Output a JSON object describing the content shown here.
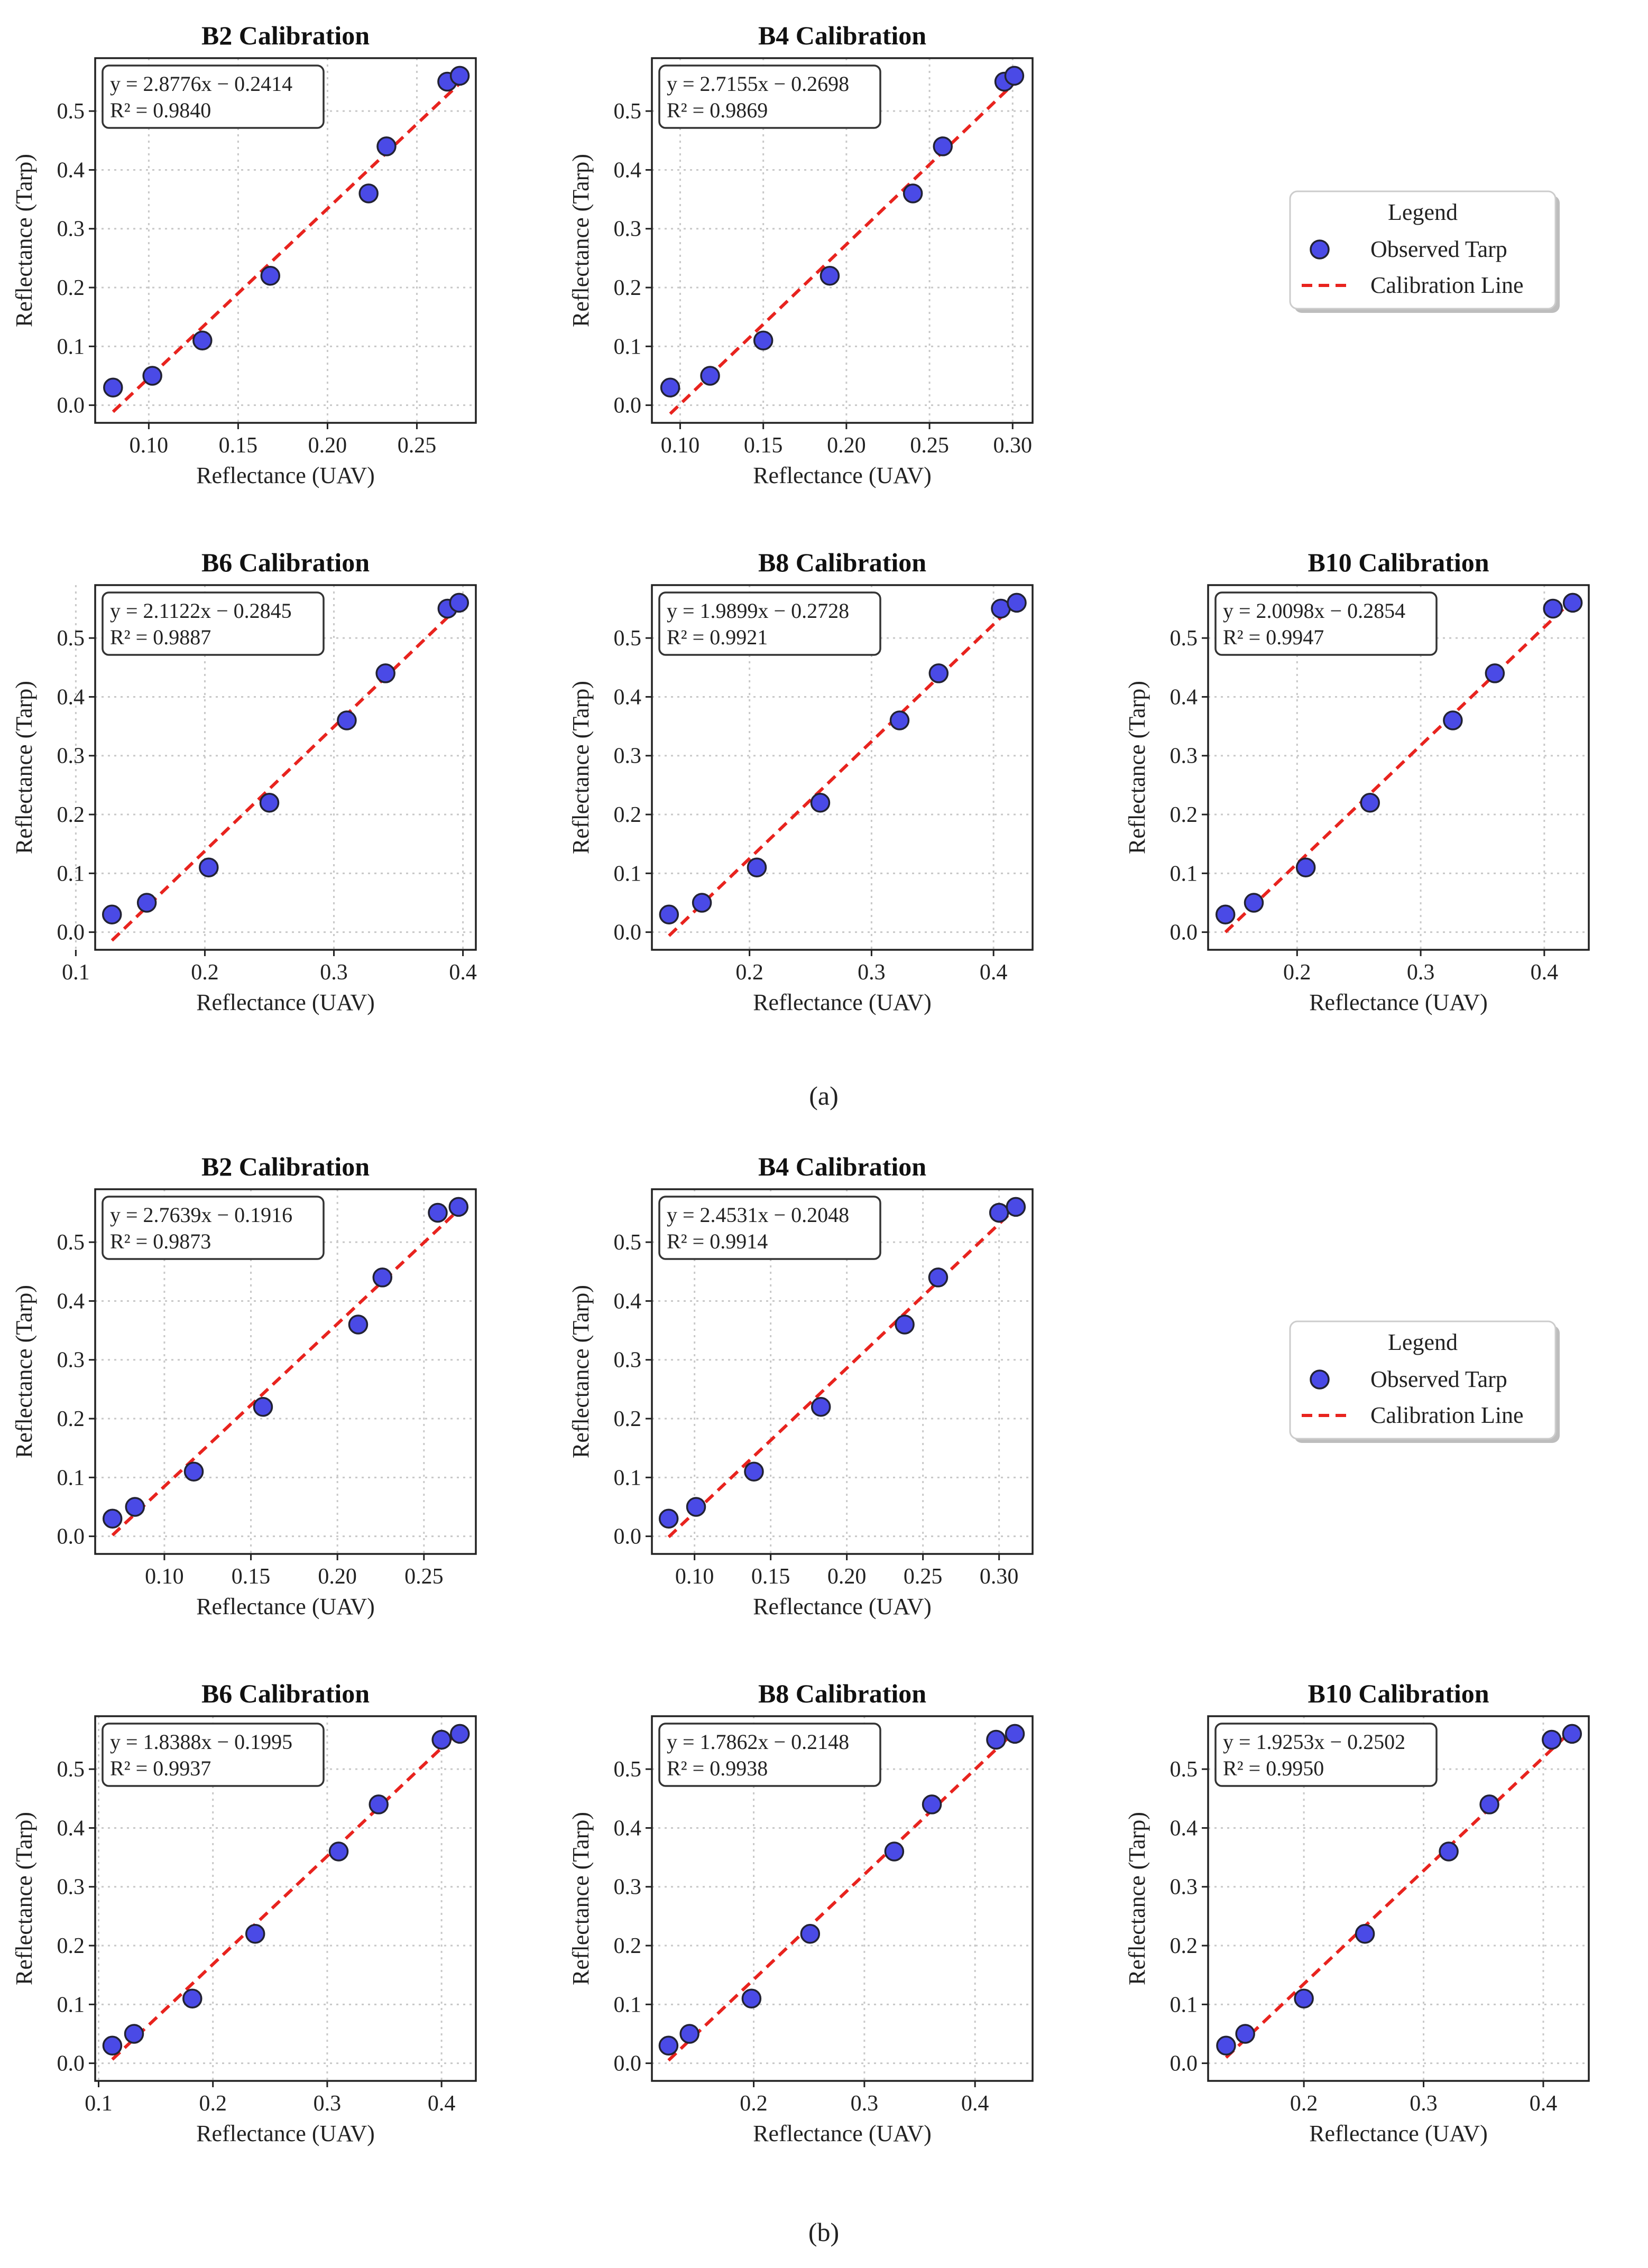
{
  "figure": {
    "marker_color": "#4a4ae6",
    "marker_edge": "#222233",
    "line_color": "#e8231e",
    "grid_color": "#c8c8c8",
    "legend_marker_icon": "filled-circle-icon",
    "legend_line_icon": "dashed-line-icon"
  },
  "panels": [
    {
      "label": "(a)"
    },
    {
      "label": "(b)"
    }
  ],
  "legends": [
    {
      "title": "Legend",
      "items": [
        "Observed Tarp",
        "Calibration Line"
      ]
    },
    {
      "title": "Legend",
      "items": [
        "Observed Tarp",
        "Calibration Line"
      ]
    }
  ],
  "chart_data": [
    {
      "type": "scatter",
      "panel": "(a)",
      "title": "B2 Calibration",
      "xlabel": "Reflectance (UAV)",
      "ylabel": "Reflectance (Tarp)",
      "xlim": [
        0.07,
        0.283
      ],
      "ylim": [
        -0.03,
        0.59
      ],
      "xticks": [
        0.1,
        0.15,
        0.2,
        0.25
      ],
      "xtick_labels": [
        "0.10",
        "0.15",
        "0.20",
        "0.25"
      ],
      "yticks": [
        0.0,
        0.1,
        0.2,
        0.3,
        0.4,
        0.5
      ],
      "ytick_labels": [
        "0.0",
        "0.1",
        "0.2",
        "0.3",
        "0.4",
        "0.5"
      ],
      "series": [
        {
          "name": "Observed Tarp",
          "x": [
            0.08,
            0.102,
            0.13,
            0.168,
            0.223,
            0.233,
            0.267,
            0.274
          ],
          "y": [
            0.03,
            0.05,
            0.11,
            0.22,
            0.36,
            0.44,
            0.55,
            0.56
          ]
        },
        {
          "name": "Calibration Line",
          "slope": 2.8776,
          "intercept": -0.2414,
          "x_range": [
            0.08,
            0.274
          ]
        }
      ],
      "annotation": [
        "y = 2.8776x − 0.2414",
        "R² = 0.9840"
      ]
    },
    {
      "type": "scatter",
      "panel": "(a)",
      "title": "B4 Calibration",
      "xlabel": "Reflectance (UAV)",
      "ylabel": "Reflectance (Tarp)",
      "xlim": [
        0.083,
        0.312
      ],
      "ylim": [
        -0.03,
        0.59
      ],
      "xticks": [
        0.1,
        0.15,
        0.2,
        0.25,
        0.3
      ],
      "xtick_labels": [
        "0.10",
        "0.15",
        "0.20",
        "0.25",
        "0.30"
      ],
      "yticks": [
        0.0,
        0.1,
        0.2,
        0.3,
        0.4,
        0.5
      ],
      "ytick_labels": [
        "0.0",
        "0.1",
        "0.2",
        "0.3",
        "0.4",
        "0.5"
      ],
      "series": [
        {
          "name": "Observed Tarp",
          "x": [
            0.094,
            0.118,
            0.15,
            0.19,
            0.24,
            0.258,
            0.295,
            0.301
          ],
          "y": [
            0.03,
            0.05,
            0.11,
            0.22,
            0.36,
            0.44,
            0.55,
            0.56
          ]
        },
        {
          "name": "Calibration Line",
          "slope": 2.7155,
          "intercept": -0.2698,
          "x_range": [
            0.094,
            0.301
          ]
        }
      ],
      "annotation": [
        "y = 2.7155x − 0.2698",
        "R² = 0.9869"
      ]
    },
    {
      "type": "scatter",
      "panel": "(a)",
      "title": "B6 Calibration",
      "xlabel": "Reflectance (UAV)",
      "ylabel": "Reflectance (Tarp)",
      "xlim": [
        0.115,
        0.41
      ],
      "ylim": [
        -0.03,
        0.59
      ],
      "xticks": [
        0.1,
        0.2,
        0.3,
        0.4
      ],
      "xtick_labels": [
        "0.1",
        "0.2",
        "0.3",
        "0.4"
      ],
      "yticks": [
        0.0,
        0.1,
        0.2,
        0.3,
        0.4,
        0.5
      ],
      "ytick_labels": [
        "0.0",
        "0.1",
        "0.2",
        "0.3",
        "0.4",
        "0.5"
      ],
      "series": [
        {
          "name": "Observed Tarp",
          "x": [
            0.128,
            0.155,
            0.203,
            0.25,
            0.31,
            0.34,
            0.388,
            0.397
          ],
          "y": [
            0.03,
            0.05,
            0.11,
            0.22,
            0.36,
            0.44,
            0.55,
            0.56
          ]
        },
        {
          "name": "Calibration Line",
          "slope": 2.1122,
          "intercept": -0.2845,
          "x_range": [
            0.128,
            0.397
          ]
        }
      ],
      "annotation": [
        "y = 2.1122x − 0.2845",
        "R² = 0.9887"
      ]
    },
    {
      "type": "scatter",
      "panel": "(a)",
      "title": "B8 Calibration",
      "xlabel": "Reflectance (UAV)",
      "ylabel": "Reflectance (Tarp)",
      "xlim": [
        0.12,
        0.432
      ],
      "ylim": [
        -0.03,
        0.59
      ],
      "xticks": [
        0.2,
        0.3,
        0.4
      ],
      "xtick_labels": [
        "0.2",
        "0.3",
        "0.4"
      ],
      "yticks": [
        0.0,
        0.1,
        0.2,
        0.3,
        0.4,
        0.5
      ],
      "ytick_labels": [
        "0.0",
        "0.1",
        "0.2",
        "0.3",
        "0.4",
        "0.5"
      ],
      "series": [
        {
          "name": "Observed Tarp",
          "x": [
            0.134,
            0.161,
            0.206,
            0.258,
            0.323,
            0.355,
            0.406,
            0.419
          ],
          "y": [
            0.03,
            0.05,
            0.11,
            0.22,
            0.36,
            0.44,
            0.55,
            0.56
          ]
        },
        {
          "name": "Calibration Line",
          "slope": 1.9899,
          "intercept": -0.2728,
          "x_range": [
            0.134,
            0.419
          ]
        }
      ],
      "annotation": [
        "y = 1.9899x − 0.2728",
        "R² = 0.9921"
      ]
    },
    {
      "type": "scatter",
      "panel": "(a)",
      "title": "B10 Calibration",
      "xlabel": "Reflectance (UAV)",
      "ylabel": "Reflectance (Tarp)",
      "xlim": [
        0.128,
        0.436
      ],
      "ylim": [
        -0.03,
        0.59
      ],
      "xticks": [
        0.2,
        0.3,
        0.4
      ],
      "xtick_labels": [
        "0.2",
        "0.3",
        "0.4"
      ],
      "yticks": [
        0.0,
        0.1,
        0.2,
        0.3,
        0.4,
        0.5
      ],
      "ytick_labels": [
        "0.0",
        "0.1",
        "0.2",
        "0.3",
        "0.4",
        "0.5"
      ],
      "series": [
        {
          "name": "Observed Tarp",
          "x": [
            0.142,
            0.165,
            0.207,
            0.259,
            0.326,
            0.36,
            0.407,
            0.423
          ],
          "y": [
            0.03,
            0.05,
            0.11,
            0.22,
            0.36,
            0.44,
            0.55,
            0.56
          ]
        },
        {
          "name": "Calibration Line",
          "slope": 2.0098,
          "intercept": -0.2854,
          "x_range": [
            0.142,
            0.423
          ]
        }
      ],
      "annotation": [
        "y = 2.0098x − 0.2854",
        "R² = 0.9947"
      ]
    },
    {
      "type": "scatter",
      "panel": "(b)",
      "title": "B2 Calibration",
      "xlabel": "Reflectance (UAV)",
      "ylabel": "Reflectance (Tarp)",
      "xlim": [
        0.06,
        0.28
      ],
      "ylim": [
        -0.03,
        0.59
      ],
      "xticks": [
        0.1,
        0.15,
        0.2,
        0.25
      ],
      "xtick_labels": [
        "0.10",
        "0.15",
        "0.20",
        "0.25"
      ],
      "yticks": [
        0.0,
        0.1,
        0.2,
        0.3,
        0.4,
        0.5
      ],
      "ytick_labels": [
        "0.0",
        "0.1",
        "0.2",
        "0.3",
        "0.4",
        "0.5"
      ],
      "series": [
        {
          "name": "Observed Tarp",
          "x": [
            0.07,
            0.083,
            0.117,
            0.157,
            0.212,
            0.226,
            0.258,
            0.27
          ],
          "y": [
            0.03,
            0.05,
            0.11,
            0.22,
            0.36,
            0.44,
            0.55,
            0.56
          ]
        },
        {
          "name": "Calibration Line",
          "slope": 2.7639,
          "intercept": -0.1916,
          "x_range": [
            0.07,
            0.27
          ]
        }
      ],
      "annotation": [
        "y = 2.7639x − 0.1916",
        "R² = 0.9873"
      ]
    },
    {
      "type": "scatter",
      "panel": "(b)",
      "title": "B4 Calibration",
      "xlabel": "Reflectance (UAV)",
      "ylabel": "Reflectance (Tarp)",
      "xlim": [
        0.072,
        0.322
      ],
      "ylim": [
        -0.03,
        0.59
      ],
      "xticks": [
        0.1,
        0.15,
        0.2,
        0.25,
        0.3
      ],
      "xtick_labels": [
        "0.10",
        "0.15",
        "0.20",
        "0.25",
        "0.30"
      ],
      "yticks": [
        0.0,
        0.1,
        0.2,
        0.3,
        0.4,
        0.5
      ],
      "ytick_labels": [
        "0.0",
        "0.1",
        "0.2",
        "0.3",
        "0.4",
        "0.5"
      ],
      "series": [
        {
          "name": "Observed Tarp",
          "x": [
            0.083,
            0.101,
            0.139,
            0.183,
            0.238,
            0.26,
            0.3,
            0.311
          ],
          "y": [
            0.03,
            0.05,
            0.11,
            0.22,
            0.36,
            0.44,
            0.55,
            0.56
          ]
        },
        {
          "name": "Calibration Line",
          "slope": 2.4531,
          "intercept": -0.2048,
          "x_range": [
            0.083,
            0.311
          ]
        }
      ],
      "annotation": [
        "y = 2.4531x − 0.2048",
        "R² = 0.9914"
      ]
    },
    {
      "type": "scatter",
      "panel": "(b)",
      "title": "B6 Calibration",
      "xlabel": "Reflectance (UAV)",
      "ylabel": "Reflectance (Tarp)",
      "xlim": [
        0.097,
        0.43
      ],
      "ylim": [
        -0.03,
        0.59
      ],
      "xticks": [
        0.1,
        0.2,
        0.3,
        0.4
      ],
      "xtick_labels": [
        "0.1",
        "0.2",
        "0.3",
        "0.4"
      ],
      "yticks": [
        0.0,
        0.1,
        0.2,
        0.3,
        0.4,
        0.5
      ],
      "ytick_labels": [
        "0.0",
        "0.1",
        "0.2",
        "0.3",
        "0.4",
        "0.5"
      ],
      "series": [
        {
          "name": "Observed Tarp",
          "x": [
            0.112,
            0.131,
            0.182,
            0.237,
            0.31,
            0.345,
            0.4,
            0.416
          ],
          "y": [
            0.03,
            0.05,
            0.11,
            0.22,
            0.36,
            0.44,
            0.55,
            0.56
          ]
        },
        {
          "name": "Calibration Line",
          "slope": 1.8388,
          "intercept": -0.1995,
          "x_range": [
            0.112,
            0.416
          ]
        }
      ],
      "annotation": [
        "y = 1.8388x − 0.1995",
        "R² = 0.9937"
      ]
    },
    {
      "type": "scatter",
      "panel": "(b)",
      "title": "B8 Calibration",
      "xlabel": "Reflectance (UAV)",
      "ylabel": "Reflectance (Tarp)",
      "xlim": [
        0.108,
        0.452
      ],
      "ylim": [
        -0.03,
        0.59
      ],
      "xticks": [
        0.2,
        0.3,
        0.4
      ],
      "xtick_labels": [
        "0.2",
        "0.3",
        "0.4"
      ],
      "yticks": [
        0.0,
        0.1,
        0.2,
        0.3,
        0.4,
        0.5
      ],
      "ytick_labels": [
        "0.0",
        "0.1",
        "0.2",
        "0.3",
        "0.4",
        "0.5"
      ],
      "series": [
        {
          "name": "Observed Tarp",
          "x": [
            0.123,
            0.142,
            0.198,
            0.251,
            0.327,
            0.361,
            0.419,
            0.436
          ],
          "y": [
            0.03,
            0.05,
            0.11,
            0.22,
            0.36,
            0.44,
            0.55,
            0.56
          ]
        },
        {
          "name": "Calibration Line",
          "slope": 1.7862,
          "intercept": -0.2148,
          "x_range": [
            0.123,
            0.436
          ]
        }
      ],
      "annotation": [
        "y = 1.7862x − 0.2148",
        "R² = 0.9938"
      ]
    },
    {
      "type": "scatter",
      "panel": "(b)",
      "title": "B10 Calibration",
      "xlabel": "Reflectance (UAV)",
      "ylabel": "Reflectance (Tarp)",
      "xlim": [
        0.12,
        0.438
      ],
      "ylim": [
        -0.03,
        0.59
      ],
      "xticks": [
        0.2,
        0.3,
        0.4
      ],
      "xtick_labels": [
        "0.2",
        "0.3",
        "0.4"
      ],
      "yticks": [
        0.0,
        0.1,
        0.2,
        0.3,
        0.4,
        0.5
      ],
      "ytick_labels": [
        "0.0",
        "0.1",
        "0.2",
        "0.3",
        "0.4",
        "0.5"
      ],
      "series": [
        {
          "name": "Observed Tarp",
          "x": [
            0.135,
            0.151,
            0.2,
            0.251,
            0.321,
            0.355,
            0.407,
            0.424
          ],
          "y": [
            0.03,
            0.05,
            0.11,
            0.22,
            0.36,
            0.44,
            0.55,
            0.56
          ]
        },
        {
          "name": "Calibration Line",
          "slope": 1.9253,
          "intercept": -0.2502,
          "x_range": [
            0.135,
            0.424
          ]
        }
      ],
      "annotation": [
        "y = 1.9253x − 0.2502",
        "R² = 0.9950"
      ]
    }
  ]
}
